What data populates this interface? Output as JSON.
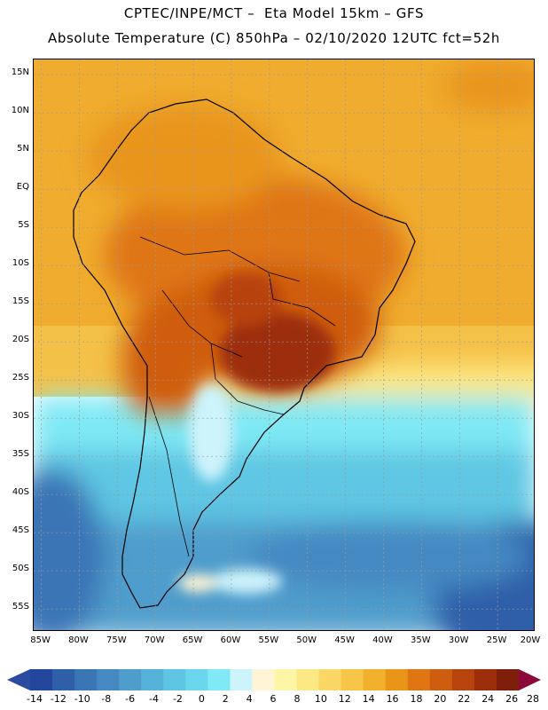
{
  "header": {
    "line1": "CPTEC/INPE/MCT –  Eta Model 15km – GFS",
    "line2": "Absolute Temperature (C) 850hPa – 02/10/2020 12UTC fct=52h"
  },
  "map": {
    "lat_labels": [
      "15N",
      "10N",
      "5N",
      "EQ",
      "5S",
      "10S",
      "15S",
      "20S",
      "25S",
      "30S",
      "35S",
      "40S",
      "45S",
      "50S",
      "55S"
    ],
    "lon_labels": [
      "85W",
      "80W",
      "75W",
      "70W",
      "65W",
      "60W",
      "55W",
      "50W",
      "45W",
      "40W",
      "35W",
      "30W",
      "25W",
      "20W"
    ],
    "lat_values": [
      15,
      10,
      5,
      0,
      -5,
      -10,
      -15,
      -20,
      -25,
      -30,
      -35,
      -40,
      -45,
      -50,
      -55
    ],
    "lon_values": [
      -85,
      -80,
      -75,
      -70,
      -65,
      -60,
      -55,
      -50,
      -45,
      -40,
      -35,
      -30,
      -25,
      -20
    ],
    "lat_range": [
      -58,
      17
    ],
    "lon_range": [
      -86,
      -20
    ],
    "grid_color": "#9a9a9a"
  },
  "colorbar": {
    "labels": [
      "-14",
      "-12",
      "-10",
      "-8",
      "-6",
      "-4",
      "-2",
      "0",
      "2",
      "4",
      "6",
      "8",
      "10",
      "12",
      "14",
      "16",
      "18",
      "20",
      "22",
      "24",
      "26",
      "28"
    ],
    "under_color": "#2b4aa0",
    "over_color": "#8b0a3a",
    "colors": [
      "#24469c",
      "#2f5fa8",
      "#3a75b6",
      "#4589c2",
      "#4f9dcc",
      "#56b2d8",
      "#5ec6e3",
      "#6ad7ec",
      "#7fe9f5",
      "#cdf3fb",
      "#fff5d6",
      "#fef6a6",
      "#fde983",
      "#fbd765",
      "#f7c547",
      "#f1b12c",
      "#e9951a",
      "#df7613",
      "#cf5d10",
      "#b8430c",
      "#9c2f0a",
      "#7e1f0c"
    ]
  }
}
